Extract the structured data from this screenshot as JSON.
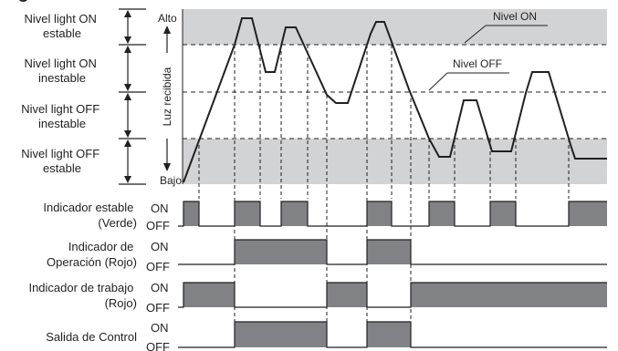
{
  "title_fragment": "ig",
  "levels": [
    {
      "line1": "Nivel light ON",
      "line2": "estable"
    },
    {
      "line1": "Nivel light ON",
      "line2": "inestable"
    },
    {
      "line1": "Nivel light OFF",
      "line2": "inestable"
    },
    {
      "line1": "Nivel light OFF",
      "line2": "estable"
    }
  ],
  "axis": {
    "high": "Alto",
    "low": "Bajo",
    "label": "Luz recibida"
  },
  "annotations": {
    "on_level": "Nivel ON",
    "off_level": "Nivel OFF"
  },
  "signals": [
    {
      "line1": "Indicador estable",
      "line2": "(Verde)"
    },
    {
      "line1": "Indicador de",
      "line2": "Operación  (Rojo)"
    },
    {
      "line1": "Indicador de trabajo",
      "line2": "(Rojo)"
    },
    {
      "line1": "Salida de Control",
      "line2": ""
    }
  ],
  "state_on": "ON",
  "state_off": "OFF",
  "colors": {
    "band_fill": "#d1d3d4",
    "pulse_fill": "#808285",
    "line": "#231f20"
  }
}
